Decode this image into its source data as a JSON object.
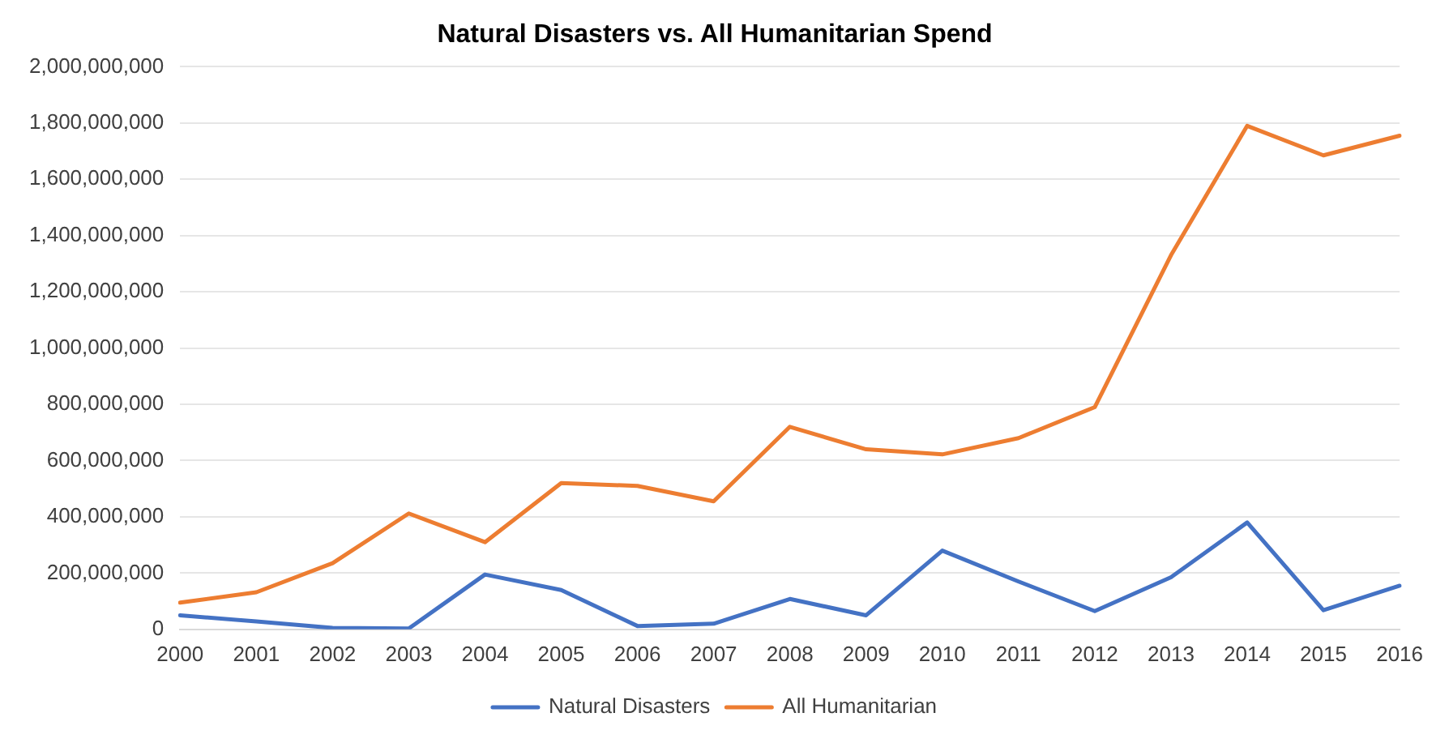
{
  "chart_data": {
    "type": "line",
    "title": "Natural Disasters vs. All Humanitarian Spend",
    "categories": [
      "2000",
      "2001",
      "2002",
      "2003",
      "2004",
      "2005",
      "2006",
      "2007",
      "2008",
      "2009",
      "2010",
      "2011",
      "2012",
      "2013",
      "2014",
      "2015",
      "2016"
    ],
    "series": [
      {
        "name": "Natural Disasters",
        "color": "#4472c4",
        "values": [
          50000000,
          28000000,
          5000000,
          3000000,
          195000000,
          140000000,
          12000000,
          20000000,
          108000000,
          50000000,
          280000000,
          170000000,
          65000000,
          185000000,
          380000000,
          68000000,
          155000000
        ]
      },
      {
        "name": "All Humanitarian",
        "color": "#ed7d31",
        "values": [
          95000000,
          132000000,
          235000000,
          412000000,
          310000000,
          520000000,
          510000000,
          455000000,
          720000000,
          640000000,
          622000000,
          680000000,
          790000000,
          1330000000,
          1790000000,
          1685000000,
          1755000000
        ]
      }
    ],
    "ylim": [
      0,
      2000000000
    ],
    "yticks": [
      {
        "value": 0,
        "label": "0"
      },
      {
        "value": 200000000,
        "label": "200,000,000"
      },
      {
        "value": 400000000,
        "label": "400,000,000"
      },
      {
        "value": 600000000,
        "label": "600,000,000"
      },
      {
        "value": 800000000,
        "label": "800,000,000"
      },
      {
        "value": 1000000000,
        "label": "1,000,000,000"
      },
      {
        "value": 1200000000,
        "label": "1,200,000,000"
      },
      {
        "value": 1400000000,
        "label": "1,400,000,000"
      },
      {
        "value": 1600000000,
        "label": "1,600,000,000"
      },
      {
        "value": 1800000000,
        "label": "1,800,000,000"
      },
      {
        "value": 2000000000,
        "label": "2,000,000,000"
      }
    ],
    "grid": "y",
    "legend": "bottom",
    "marker": "none",
    "line_style": "solid"
  }
}
